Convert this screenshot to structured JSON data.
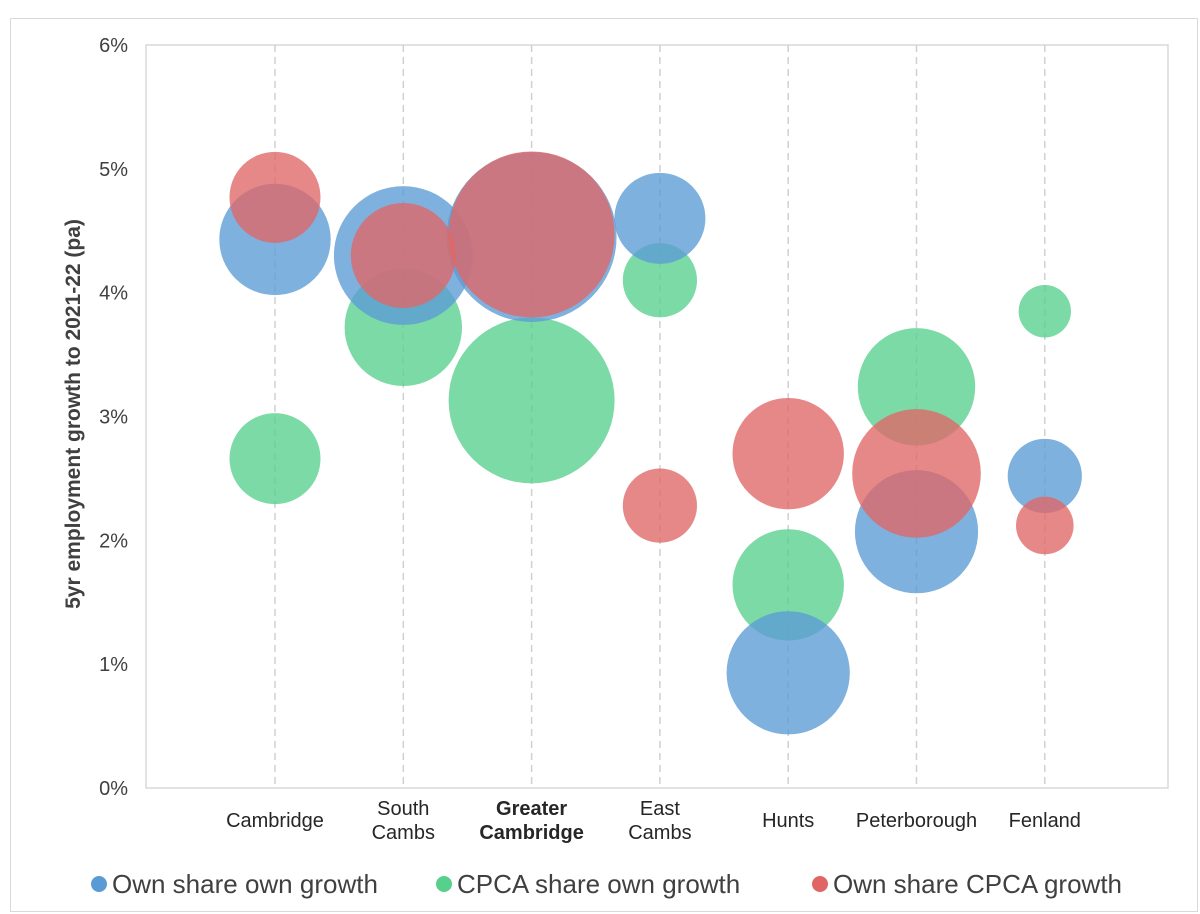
{
  "chart_data": {
    "type": "bubble",
    "ylabel": "5yr employment growth to 2021-22 (pa)",
    "xlabel": "",
    "ylim": [
      0,
      0.06
    ],
    "y_ticks": [
      "0%",
      "1%",
      "2%",
      "3%",
      "4%",
      "5%",
      "6%"
    ],
    "y_tick_values": [
      0,
      0.01,
      0.02,
      0.03,
      0.04,
      0.05,
      0.06
    ],
    "categories": [
      {
        "lines": [
          "Cambridge"
        ],
        "bold": false
      },
      {
        "lines": [
          "South",
          "Cambs"
        ],
        "bold": false
      },
      {
        "lines": [
          "Greater",
          "Cambridge"
        ],
        "bold": true
      },
      {
        "lines": [
          "East",
          "Cambs"
        ],
        "bold": false
      },
      {
        "lines": [
          "Hunts"
        ],
        "bold": false
      },
      {
        "lines": [
          "Peterborough"
        ],
        "bold": false
      },
      {
        "lines": [
          "Fenland"
        ],
        "bold": false
      }
    ],
    "grid": {
      "vertical_dashed": true,
      "horizontal": false
    },
    "legend_position": "bottom",
    "series": [
      {
        "name": "Own share own growth",
        "color": "#5B9BD5",
        "values": [
          0.0443,
          0.043,
          0.0445,
          0.046,
          0.0093,
          0.0207,
          0.0252
        ],
        "sizes": [
          0.45,
          0.7,
          1.05,
          0.3,
          0.55,
          0.55,
          0.2
        ]
      },
      {
        "name": "CPCA share own growth",
        "color": "#57D08E",
        "values": [
          0.0266,
          0.0372,
          0.0313,
          0.041,
          0.0164,
          0.0324,
          0.0385
        ],
        "sizes": [
          0.3,
          0.5,
          1.0,
          0.2,
          0.45,
          0.5,
          0.1
        ]
      },
      {
        "name": "Own share CPCA growth",
        "color": "#E06666",
        "values": [
          0.0477,
          0.043,
          0.0447,
          0.0228,
          0.027,
          0.0254,
          0.0212
        ],
        "sizes": [
          0.3,
          0.4,
          1.0,
          0.2,
          0.45,
          0.6,
          0.12
        ]
      }
    ]
  }
}
